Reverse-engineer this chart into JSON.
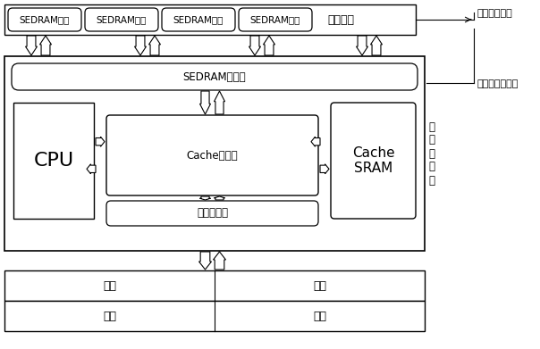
{
  "fig_width": 6.04,
  "fig_height": 3.91,
  "bg_color": "#ffffff",
  "sedram_units": [
    "SEDRAM单元",
    "SEDRAM单元",
    "SEDRAM单元",
    "SEDRAM单元"
  ],
  "sedram_label": "存储晶圆",
  "sedram_controller": "SEDRAM控制器",
  "cpu_label": "CPU",
  "cache_ctrl_label": "Cache控制器",
  "cache_sram_label": "Cache\nSRAM",
  "mem_ctrl_label": "内存控制器",
  "mem_label": "内存",
  "processor_die_label": "处\n理\n器\n晶\n圆",
  "annotation_storage": "存储晶圆结构",
  "annotation_processor": "处理器晶圆结构"
}
